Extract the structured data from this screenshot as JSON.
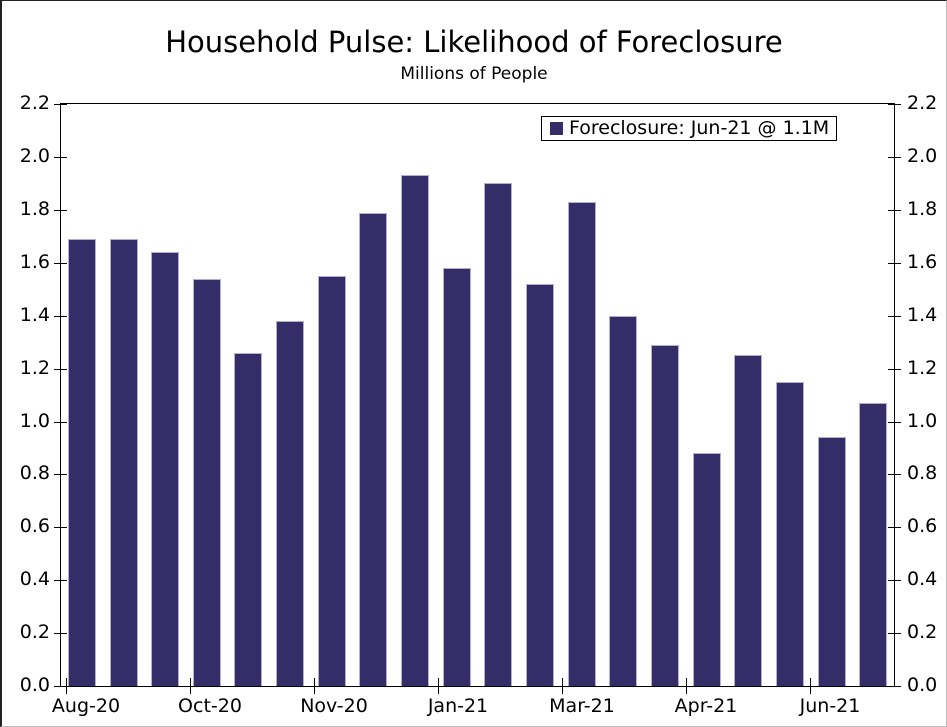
{
  "chart_data": {
    "type": "bar",
    "title": "Household Pulse: Likelihood of Foreclosure",
    "subtitle": "Millions of People",
    "legend_label": "Foreclosure: Jun-21 @ 1.1M",
    "legend_position": "top-right",
    "grid": false,
    "y_axis_sides": "both",
    "ylim": [
      0.0,
      2.2
    ],
    "y_tick_step": 0.2,
    "y_tick_labels": [
      "0.0",
      "0.2",
      "0.4",
      "0.6",
      "0.8",
      "1.0",
      "1.2",
      "1.4",
      "1.6",
      "1.8",
      "2.0",
      "2.2"
    ],
    "x_tick_labels": [
      "Aug-20",
      "Oct-20",
      "Nov-20",
      "Jan-21",
      "Mar-21",
      "Apr-21",
      "Jun-21"
    ],
    "series": [
      {
        "name": "Foreclosure",
        "unit": "millions of people",
        "values": [
          1.69,
          1.69,
          1.64,
          1.54,
          1.26,
          1.38,
          1.55,
          1.79,
          1.93,
          1.58,
          1.9,
          1.52,
          1.83,
          1.4,
          1.29,
          0.88,
          1.25,
          1.15,
          0.94,
          1.07
        ]
      }
    ],
    "last_point": {
      "label": "Jun-21",
      "value_text": "1.1M"
    },
    "colors": {
      "bar_fill": "#352d68",
      "bar_edge": "#b5aed1",
      "axis": "#000000",
      "text": "#000000",
      "background": "#ffffff"
    }
  }
}
